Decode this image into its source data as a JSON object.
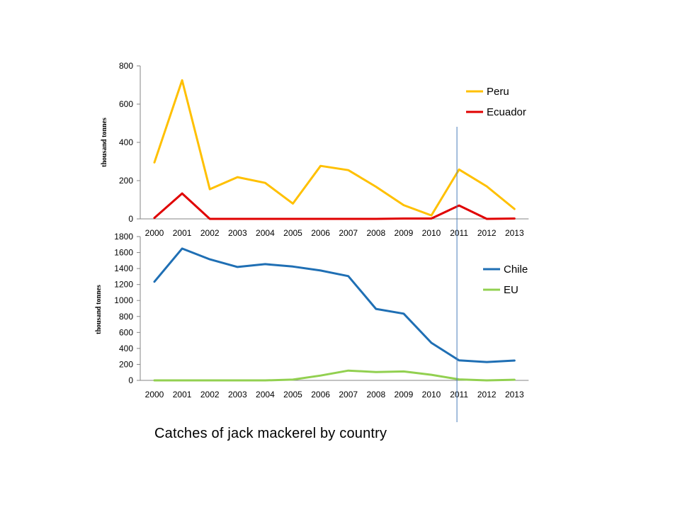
{
  "caption": "Catches of jack mackerel by country",
  "chart_data": [
    {
      "type": "line",
      "categories": [
        "2000",
        "2001",
        "2002",
        "2003",
        "2004",
        "2005",
        "2006",
        "2007",
        "2008",
        "2009",
        "2010",
        "2011",
        "2012",
        "2013"
      ],
      "ylabel": "thousand tonnes",
      "ylim": [
        0,
        800
      ],
      "yticks": [
        0,
        200,
        400,
        600,
        800
      ],
      "legend_position": "top-right",
      "series": [
        {
          "name": "Peru",
          "color": "#FFC000",
          "values": [
            295,
            725,
            155,
            218,
            188,
            80,
            277,
            255,
            168,
            72,
            18,
            258,
            170,
            52
          ]
        },
        {
          "name": "Ecuador",
          "color": "#E00000",
          "values": [
            5,
            133,
            0,
            0,
            0,
            0,
            0,
            0,
            0,
            2,
            2,
            70,
            0,
            2
          ]
        }
      ]
    },
    {
      "type": "line",
      "categories": [
        "2000",
        "2001",
        "2002",
        "2003",
        "2004",
        "2005",
        "2006",
        "2007",
        "2008",
        "2009",
        "2010",
        "2011",
        "2012",
        "2013"
      ],
      "ylabel": "thousand tonnes",
      "ylim": [
        0,
        1800
      ],
      "yticks": [
        0,
        200,
        400,
        600,
        800,
        1000,
        1200,
        1400,
        1600,
        1800
      ],
      "legend_position": "top-right",
      "series": [
        {
          "name": "Chile",
          "color": "#1F6FB4",
          "values": [
            1235,
            1650,
            1515,
            1420,
            1455,
            1425,
            1375,
            1305,
            895,
            835,
            470,
            250,
            230,
            248
          ]
        },
        {
          "name": "EU",
          "color": "#92D050",
          "values": [
            0,
            0,
            0,
            0,
            0,
            10,
            60,
            122,
            105,
            112,
            70,
            12,
            0,
            8
          ]
        }
      ]
    }
  ],
  "marker": {
    "label": "2011",
    "color": "#4A7DBA"
  }
}
